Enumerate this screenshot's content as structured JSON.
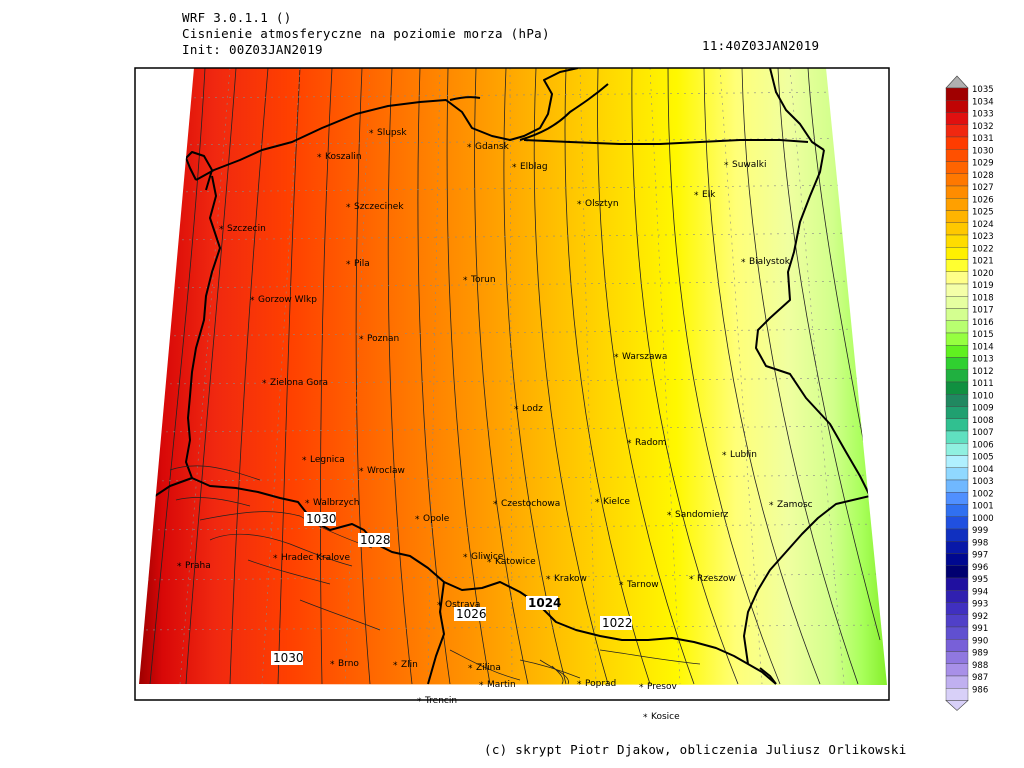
{
  "header": {
    "line1": "WRF 3.0.1.1 ()",
    "line2": "Cisnienie atmosferyczne na poziomie morza (hPa)",
    "line3": "Init: 00Z03JAN2019",
    "valid_time": "11:40Z03JAN2019"
  },
  "footer": {
    "credit": "(c) skrypt Piotr Djakow, obliczenia Juliusz Orlikowski"
  },
  "map": {
    "variable": "sea-level pressure",
    "units": "hPa",
    "cities": [
      "Slupsk",
      "Gdansk",
      "Koszalin",
      "Elblag",
      "Suwalki",
      "Olsztyn",
      "Elk",
      "Szczecinek",
      "Szczecin",
      "Bialystok",
      "Pila",
      "Torun",
      "Gorzow Wlkp",
      "Poznan",
      "Warszawa",
      "Zielona Gora",
      "Lodz",
      "Radom",
      "Lublin",
      "Legnica",
      "Wroclaw",
      "Walbrzych",
      "Czestochowa",
      "Kielce",
      "Zamosc",
      "Opole",
      "Sandomierz",
      "Hradec Kralove",
      "Gliwice",
      "Katowice",
      "Praha",
      "Krakow",
      "Tarnow",
      "Rzeszow",
      "Ostrava",
      "Brno",
      "Zlin",
      "Zilina",
      "Martin",
      "Poprad",
      "Presov",
      "Trencin",
      "Kosice"
    ],
    "contour_labels": [
      "1030",
      "1028",
      "1024",
      "1026",
      "1022",
      "1030"
    ]
  },
  "legend": {
    "levels": [
      "1035",
      "1034",
      "1033",
      "1032",
      "1031",
      "1030",
      "1029",
      "1028",
      "1027",
      "1026",
      "1025",
      "1024",
      "1023",
      "1022",
      "1021",
      "1020",
      "1019",
      "1018",
      "1017",
      "1016",
      "1015",
      "1014",
      "1013",
      "1012",
      "1011",
      "1010",
      "1009",
      "1008",
      "1007",
      "1006",
      "1005",
      "1004",
      "1003",
      "1002",
      "1001",
      "1000",
      "999",
      "998",
      "997",
      "996",
      "995",
      "994",
      "993",
      "992",
      "991",
      "990",
      "989",
      "988",
      "987",
      "986"
    ],
    "colors": [
      "#a00000",
      "#c00404",
      "#e01010",
      "#f02810",
      "#ff3c00",
      "#ff5000",
      "#ff6400",
      "#ff7800",
      "#ff8c00",
      "#ffa000",
      "#ffb400",
      "#ffc800",
      "#ffdc00",
      "#fff000",
      "#ffff30",
      "#ffff88",
      "#f4ffa8",
      "#e6ffa0",
      "#d4ff90",
      "#b8ff70",
      "#96ff40",
      "#60f020",
      "#30d030",
      "#20b040",
      "#109040",
      "#208860",
      "#20a070",
      "#30c090",
      "#60e0c0",
      "#90f0e0",
      "#b0f0ff",
      "#90d8ff",
      "#70b8ff",
      "#5090ff",
      "#3070f0",
      "#2050e0",
      "#1030c0",
      "#0818a8",
      "#000890",
      "#000070",
      "#2010a0",
      "#3020b0",
      "#4030c0",
      "#5040c8",
      "#6050d0",
      "#7860d8",
      "#9078e0",
      "#a890e8",
      "#c0b0f0",
      "#d8d0f8"
    ]
  }
}
